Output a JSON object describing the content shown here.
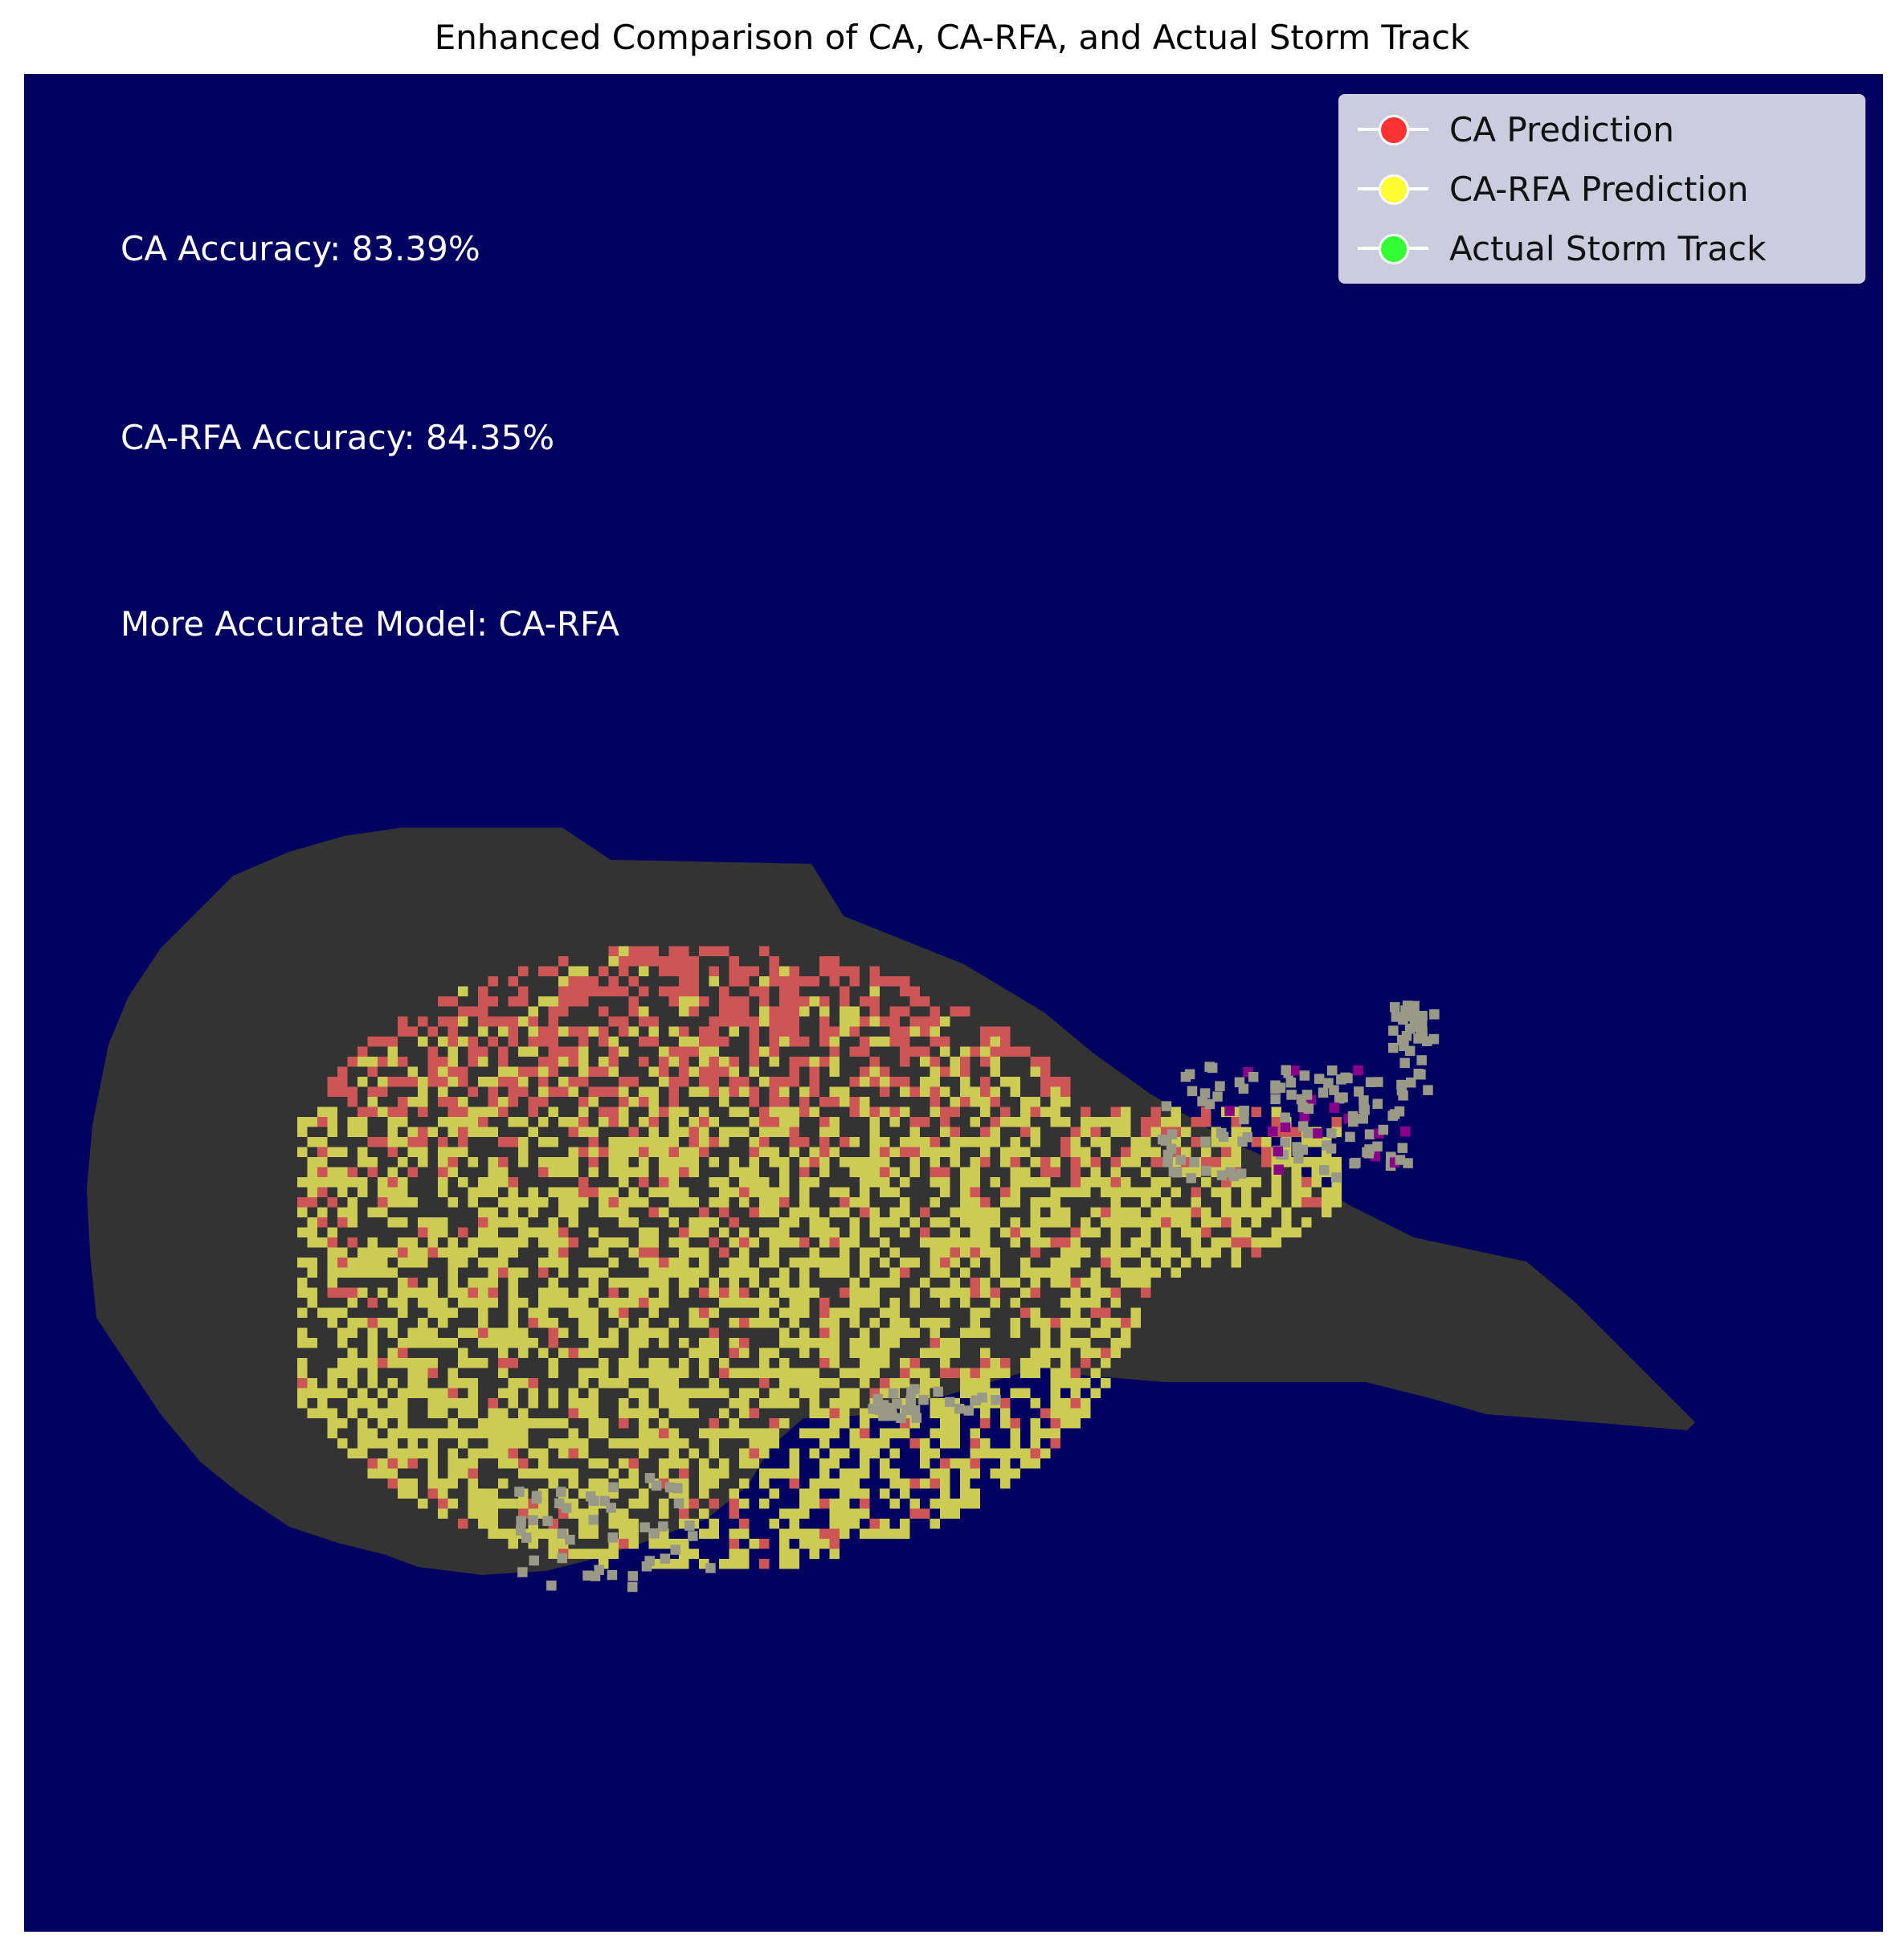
{
  "chart_data": {
    "type": "heatmap",
    "title": "Enhanced Comparison of CA, CA-RFA, and Actual Storm Track",
    "legend": {
      "placement": "top-right",
      "entries": [
        {
          "label": "CA Prediction",
          "color": "#ff3333"
        },
        {
          "label": "CA-RFA Prediction",
          "color": "#ffff33"
        },
        {
          "label": "Actual Storm Track",
          "color": "#33ff33"
        }
      ]
    },
    "annotations": {
      "ca_accuracy": "CA Accuracy: 83.39%",
      "carfa_accuracy": "CA-RFA Accuracy: 84.35%",
      "better_model": "More Accurate Model: CA-RFA"
    },
    "accuracy": {
      "CA": 83.39,
      "CA-RFA": 84.35
    },
    "axes_visible": false,
    "grid": false,
    "colors": {
      "background": "#000060",
      "storm_region": "#333333",
      "ca_cells": "#cc5555",
      "carfa_cells": "#cccc55",
      "actual_cells": "#999988",
      "overlap_cells": "#880088"
    }
  }
}
